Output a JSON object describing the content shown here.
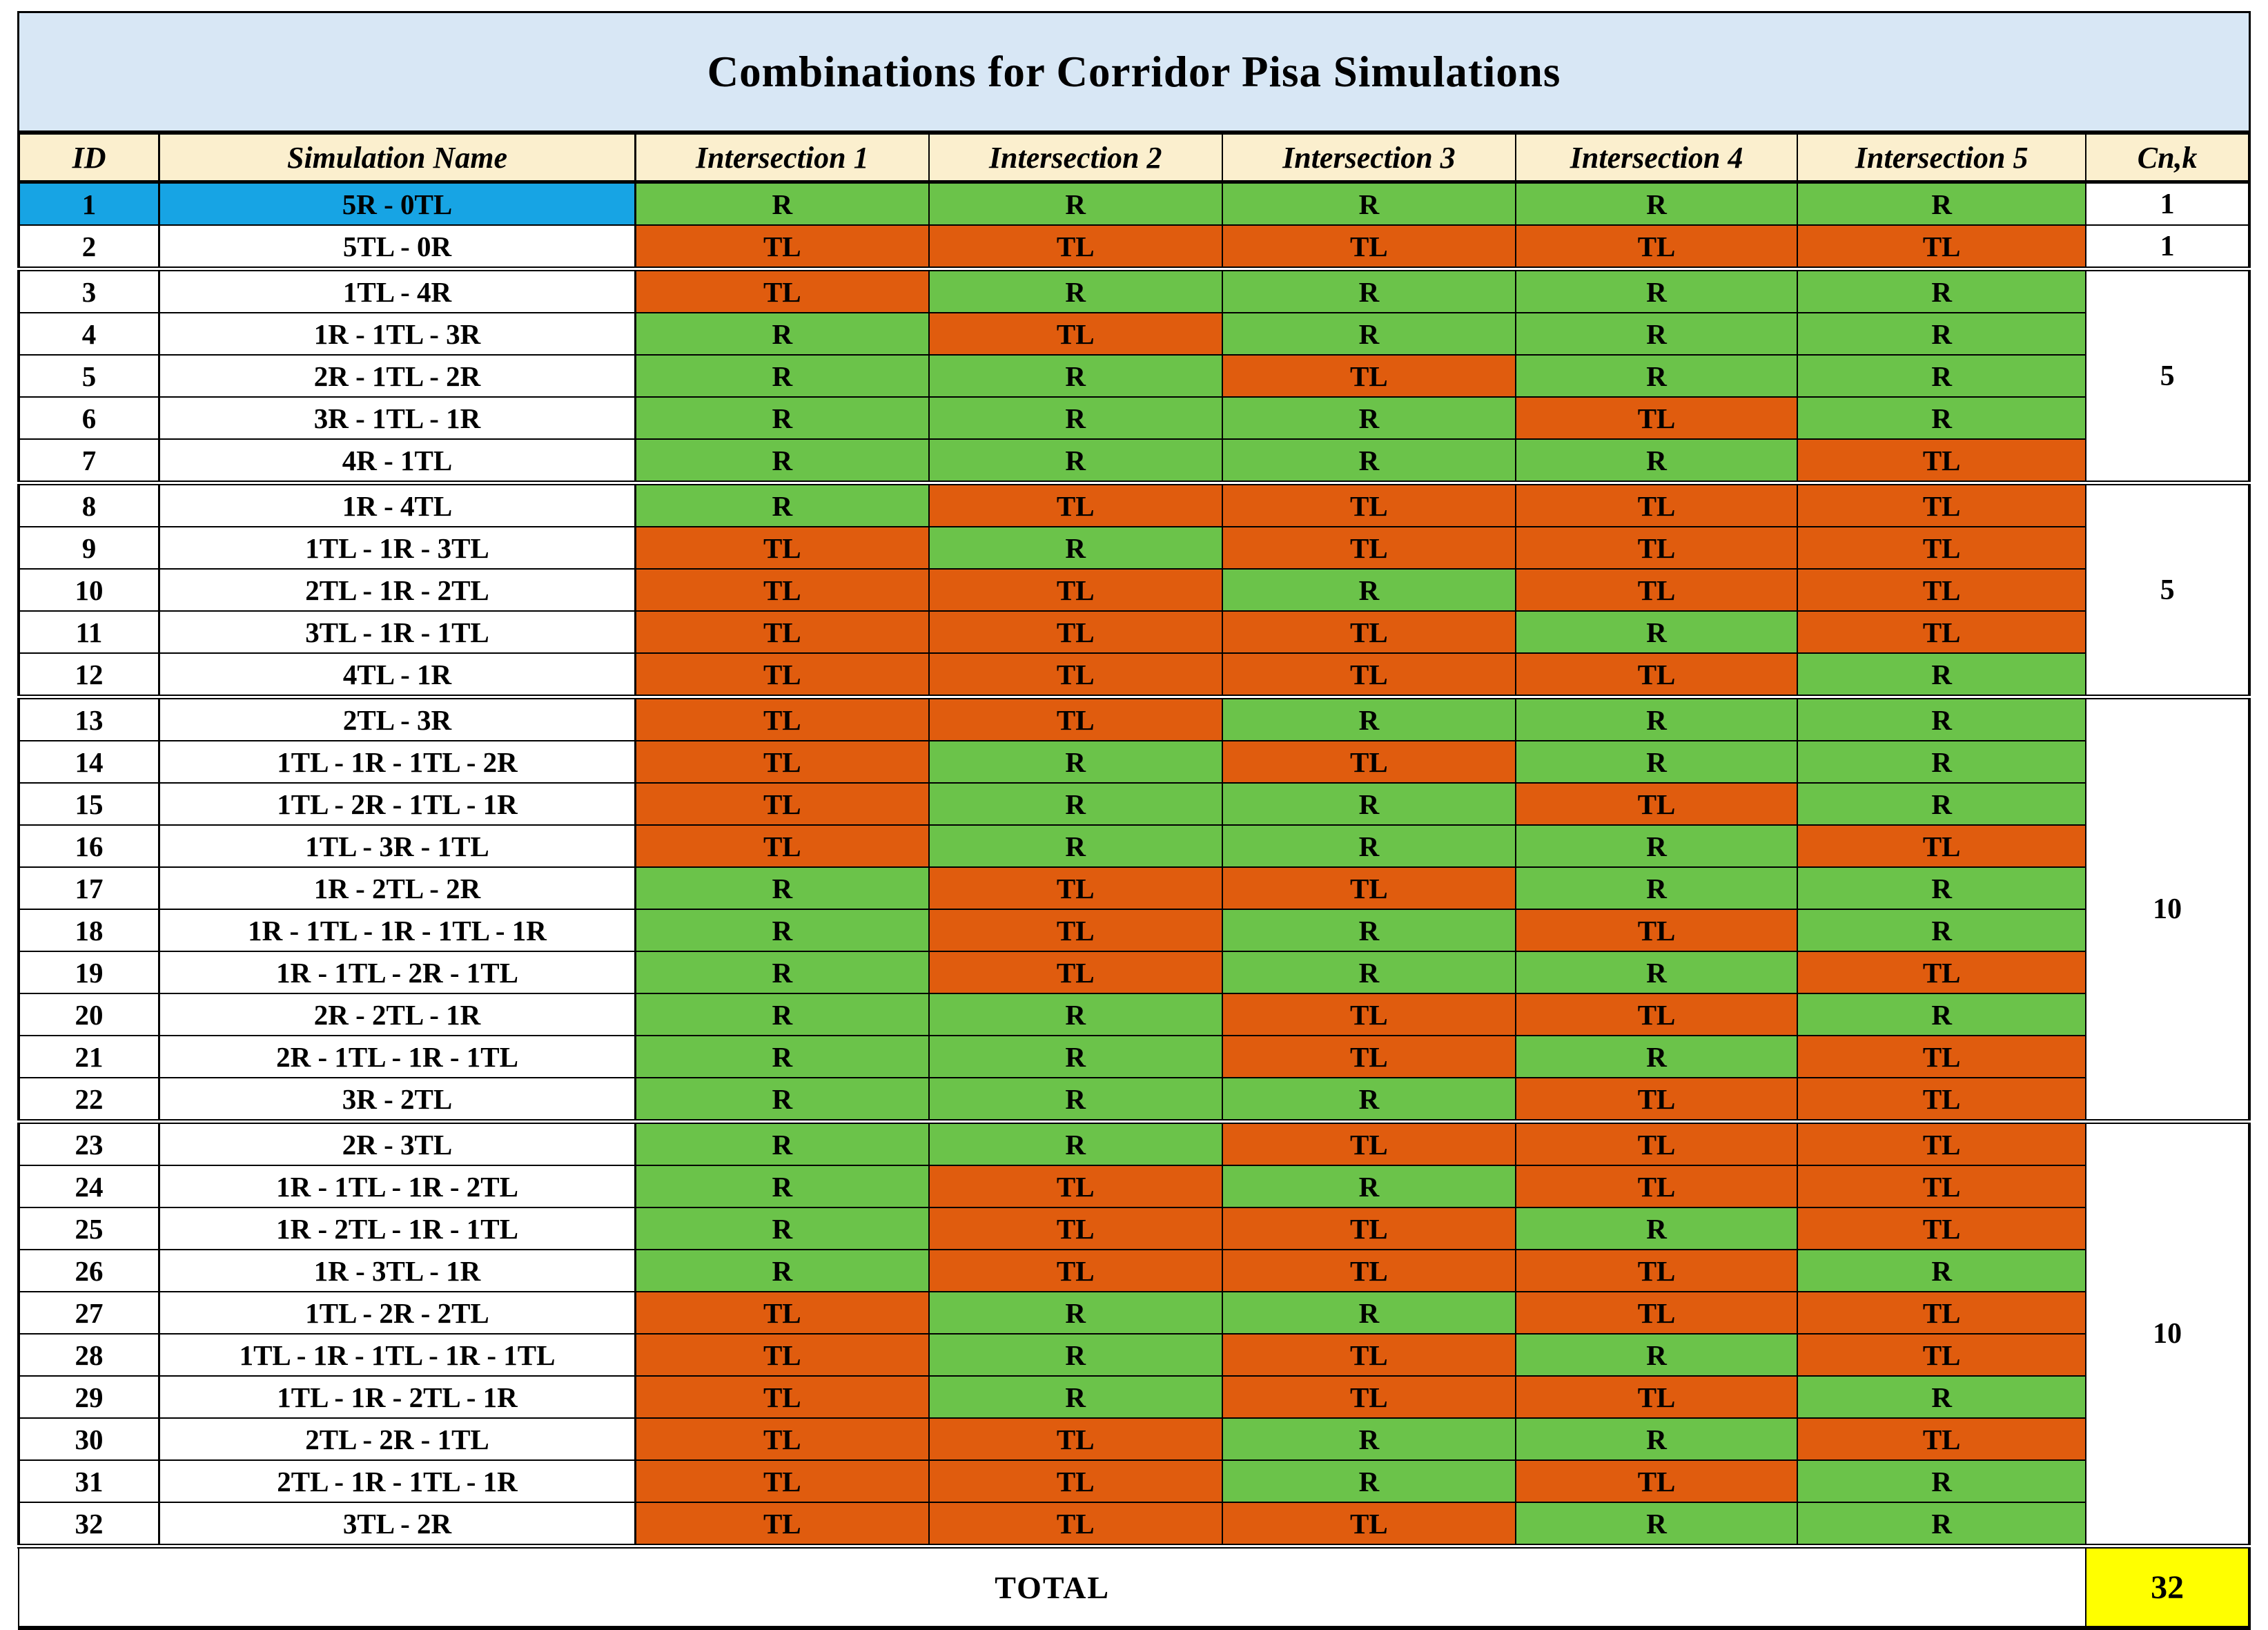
{
  "chart_data": {
    "type": "table",
    "title": "Combinations for Corridor Pisa Simulations",
    "columns": [
      "ID",
      "Simulation Name",
      "Intersection 1",
      "Intersection 2",
      "Intersection 3",
      "Intersection 4",
      "Intersection 5",
      "Cn,k"
    ],
    "rows": [
      {
        "id": "1",
        "name": "5R - 0TL",
        "cells": [
          "R",
          "R",
          "R",
          "R",
          "R"
        ],
        "highlighted": true
      },
      {
        "id": "2",
        "name": "5TL - 0R",
        "cells": [
          "TL",
          "TL",
          "TL",
          "TL",
          "TL"
        ],
        "highlighted": false
      },
      {
        "id": "3",
        "name": "1TL - 4R",
        "cells": [
          "TL",
          "R",
          "R",
          "R",
          "R"
        ],
        "highlighted": false
      },
      {
        "id": "4",
        "name": "1R - 1TL - 3R",
        "cells": [
          "R",
          "TL",
          "R",
          "R",
          "R"
        ],
        "highlighted": false
      },
      {
        "id": "5",
        "name": "2R - 1TL - 2R",
        "cells": [
          "R",
          "R",
          "TL",
          "R",
          "R"
        ],
        "highlighted": false
      },
      {
        "id": "6",
        "name": "3R - 1TL - 1R",
        "cells": [
          "R",
          "R",
          "R",
          "TL",
          "R"
        ],
        "highlighted": false
      },
      {
        "id": "7",
        "name": "4R - 1TL",
        "cells": [
          "R",
          "R",
          "R",
          "R",
          "TL"
        ],
        "highlighted": false
      },
      {
        "id": "8",
        "name": "1R - 4TL",
        "cells": [
          "R",
          "TL",
          "TL",
          "TL",
          "TL"
        ],
        "highlighted": false
      },
      {
        "id": "9",
        "name": "1TL - 1R - 3TL",
        "cells": [
          "TL",
          "R",
          "TL",
          "TL",
          "TL"
        ],
        "highlighted": false
      },
      {
        "id": "10",
        "name": "2TL - 1R - 2TL",
        "cells": [
          "TL",
          "TL",
          "R",
          "TL",
          "TL"
        ],
        "highlighted": false
      },
      {
        "id": "11",
        "name": "3TL - 1R - 1TL",
        "cells": [
          "TL",
          "TL",
          "TL",
          "R",
          "TL"
        ],
        "highlighted": false
      },
      {
        "id": "12",
        "name": "4TL - 1R",
        "cells": [
          "TL",
          "TL",
          "TL",
          "TL",
          "R"
        ],
        "highlighted": false
      },
      {
        "id": "13",
        "name": "2TL - 3R",
        "cells": [
          "TL",
          "TL",
          "R",
          "R",
          "R"
        ],
        "highlighted": false
      },
      {
        "id": "14",
        "name": "1TL - 1R - 1TL - 2R",
        "cells": [
          "TL",
          "R",
          "TL",
          "R",
          "R"
        ],
        "highlighted": false
      },
      {
        "id": "15",
        "name": "1TL - 2R - 1TL - 1R",
        "cells": [
          "TL",
          "R",
          "R",
          "TL",
          "R"
        ],
        "highlighted": false
      },
      {
        "id": "16",
        "name": "1TL - 3R - 1TL",
        "cells": [
          "TL",
          "R",
          "R",
          "R",
          "TL"
        ],
        "highlighted": false
      },
      {
        "id": "17",
        "name": "1R - 2TL - 2R",
        "cells": [
          "R",
          "TL",
          "TL",
          "R",
          "R"
        ],
        "highlighted": false
      },
      {
        "id": "18",
        "name": "1R - 1TL - 1R - 1TL - 1R",
        "cells": [
          "R",
          "TL",
          "R",
          "TL",
          "R"
        ],
        "highlighted": false
      },
      {
        "id": "19",
        "name": "1R - 1TL - 2R - 1TL",
        "cells": [
          "R",
          "TL",
          "R",
          "R",
          "TL"
        ],
        "highlighted": false
      },
      {
        "id": "20",
        "name": "2R - 2TL - 1R",
        "cells": [
          "R",
          "R",
          "TL",
          "TL",
          "R"
        ],
        "highlighted": false
      },
      {
        "id": "21",
        "name": "2R - 1TL - 1R - 1TL",
        "cells": [
          "R",
          "R",
          "TL",
          "R",
          "TL"
        ],
        "highlighted": false
      },
      {
        "id": "22",
        "name": "3R - 2TL",
        "cells": [
          "R",
          "R",
          "R",
          "TL",
          "TL"
        ],
        "highlighted": false
      },
      {
        "id": "23",
        "name": "2R - 3TL",
        "cells": [
          "R",
          "R",
          "TL",
          "TL",
          "TL"
        ],
        "highlighted": false
      },
      {
        "id": "24",
        "name": "1R - 1TL - 1R - 2TL",
        "cells": [
          "R",
          "TL",
          "R",
          "TL",
          "TL"
        ],
        "highlighted": false
      },
      {
        "id": "25",
        "name": "1R - 2TL - 1R - 1TL",
        "cells": [
          "R",
          "TL",
          "TL",
          "R",
          "TL"
        ],
        "highlighted": false
      },
      {
        "id": "26",
        "name": "1R - 3TL - 1R",
        "cells": [
          "R",
          "TL",
          "TL",
          "TL",
          "R"
        ],
        "highlighted": false
      },
      {
        "id": "27",
        "name": "1TL - 2R - 2TL",
        "cells": [
          "TL",
          "R",
          "R",
          "TL",
          "TL"
        ],
        "highlighted": false
      },
      {
        "id": "28",
        "name": "1TL - 1R - 1TL - 1R - 1TL",
        "cells": [
          "TL",
          "R",
          "TL",
          "R",
          "TL"
        ],
        "highlighted": false
      },
      {
        "id": "29",
        "name": "1TL - 1R - 2TL - 1R",
        "cells": [
          "TL",
          "R",
          "TL",
          "TL",
          "R"
        ],
        "highlighted": false
      },
      {
        "id": "30",
        "name": "2TL - 2R - 1TL",
        "cells": [
          "TL",
          "TL",
          "R",
          "R",
          "TL"
        ],
        "highlighted": false
      },
      {
        "id": "31",
        "name": "2TL - 1R - 1TL - 1R",
        "cells": [
          "TL",
          "TL",
          "R",
          "TL",
          "R"
        ],
        "highlighted": false
      },
      {
        "id": "32",
        "name": "3TL - 2R",
        "cells": [
          "TL",
          "TL",
          "TL",
          "R",
          "R"
        ],
        "highlighted": false
      }
    ],
    "cnk_groups": [
      {
        "first_row_id": "1",
        "rowspan": 1,
        "value": "1"
      },
      {
        "first_row_id": "2",
        "rowspan": 1,
        "value": "1"
      },
      {
        "first_row_id": "3",
        "rowspan": 5,
        "value": "5"
      },
      {
        "first_row_id": "8",
        "rowspan": 5,
        "value": "5"
      },
      {
        "first_row_id": "13",
        "rowspan": 10,
        "value": "10"
      },
      {
        "first_row_id": "23",
        "rowspan": 10,
        "value": "10"
      }
    ],
    "group_breaks_before_ids": [
      "3",
      "8",
      "13",
      "23"
    ],
    "footer": {
      "label": "TOTAL",
      "value": "32"
    },
    "legend": {
      "R_color": "#6BC34A",
      "TL_color": "#E05C0E",
      "highlight_color": "#17A4E4",
      "header_bg": "#FBEFCE",
      "title_bg": "#D8E7F5",
      "total_value_bg": "#FFFF00"
    }
  }
}
